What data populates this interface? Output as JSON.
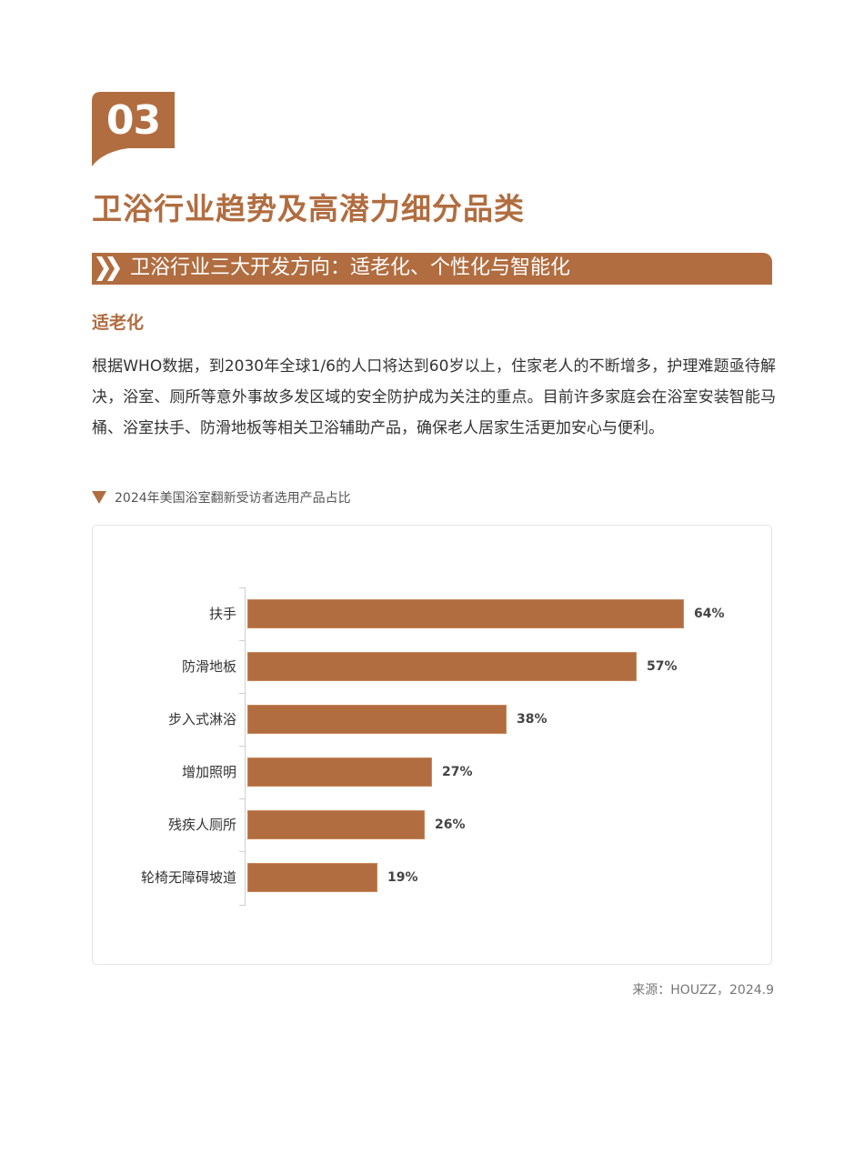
{
  "section": {
    "number": "03",
    "title": "卫浴行业趋势及高潜力细分品类"
  },
  "subheader": {
    "icon": "double-chevron-right-icon",
    "text": "卫浴行业三大开发方向：适老化、个性化与智能化"
  },
  "subsection": {
    "title": "适老化",
    "paragraph": "根据WHO数据，到2030年全球1/6的人口将达到60岁以上，住家老人的不断增多，护理难题亟待解决，浴室、厕所等意外事故多发区域的安全防护成为关注的重点。目前许多家庭会在浴室安装智能马桶、浴室扶手、防滑地板等相关卫浴辅助产品，确保老人居家生活更加安心与便利。"
  },
  "chart_caption": {
    "icon": "triangle-down-icon",
    "text": "2024年美国浴室翻新受访者选用产品占比"
  },
  "source": "来源：HOUZZ，2024.9",
  "colors": {
    "accent": "#b16d40",
    "text": "#333333",
    "muted": "#777777"
  },
  "chart_data": {
    "type": "bar",
    "orientation": "horizontal",
    "title": "2024年美国浴室翻新受访者选用产品占比",
    "categories": [
      "扶手",
      "防滑地板",
      "步入式淋浴",
      "增加照明",
      "残疾人厕所",
      "轮椅无障碍坡道"
    ],
    "values": [
      64,
      57,
      38,
      27,
      26,
      19
    ],
    "value_labels": [
      "64%",
      "57%",
      "38%",
      "27%",
      "26%",
      "19%"
    ],
    "unit": "%",
    "xlabel": "",
    "ylabel": "",
    "xlim": [
      0,
      64
    ],
    "grid": false,
    "legend": null,
    "bar_color": "#b16d40"
  }
}
